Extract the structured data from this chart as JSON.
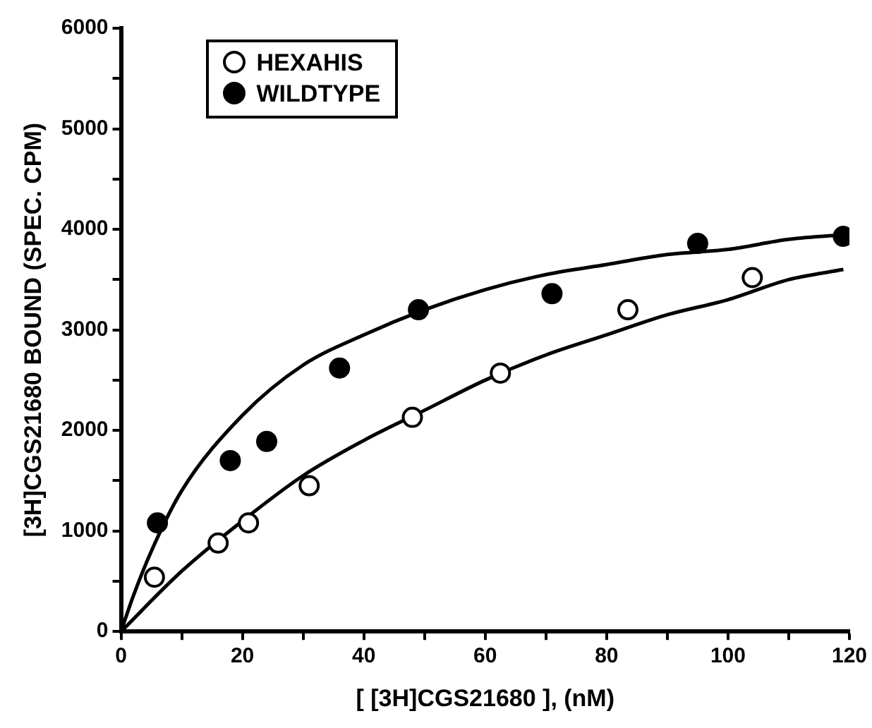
{
  "chart_data": {
    "type": "scatter",
    "xlabel": "[ [3H]CGS21680 ], (nM)",
    "ylabel": "[3H]CGS21680 BOUND (SPEC. CPM)",
    "xlim": [
      0,
      120
    ],
    "xticks": [
      0,
      {
        "value": 10,
        "label": null
      },
      20,
      {
        "value": 30,
        "label": null
      },
      40,
      {
        "value": 50,
        "label": null
      },
      60,
      {
        "value": 70,
        "label": null
      },
      80,
      {
        "value": 90,
        "label": null
      },
      100,
      {
        "value": 110,
        "label": null
      },
      120
    ],
    "ylim": [
      0,
      6000
    ],
    "yticks": [
      0,
      {
        "value": 500,
        "label": null
      },
      1000,
      {
        "value": 1500,
        "label": null
      },
      2000,
      {
        "value": 2500,
        "label": null
      },
      3000,
      {
        "value": 3500,
        "label": null
      },
      4000,
      {
        "value": 4500,
        "label": null
      },
      5000,
      {
        "value": 5500,
        "label": null
      },
      6000
    ],
    "grid": false,
    "legend": "top left",
    "marker": "circle",
    "series": [
      {
        "name": "HEXAHIS",
        "color": "#ffffff",
        "x": [
          5.5,
          16,
          21,
          31,
          48,
          62.5,
          83.5,
          104
        ],
        "values": [
          540,
          880,
          1080,
          1450,
          2130,
          2570,
          3200,
          3520
        ]
      },
      {
        "name": "WILDTYPE",
        "color": "#000000",
        "x": [
          6,
          18,
          24,
          36,
          49,
          71,
          95,
          119
        ],
        "values": [
          1080,
          1700,
          1890,
          2620,
          3200,
          3360,
          3860,
          3930
        ]
      },
      {
        "type": "line",
        "marker": "none",
        "color": "#000000",
        "x": [
          0,
          2,
          5,
          10,
          20,
          30,
          40,
          50,
          60,
          70,
          80,
          90,
          100,
          110,
          120
        ],
        "values": [
          0,
          350,
          800,
          1400,
          2150,
          2650,
          2950,
          3200,
          3400,
          3550,
          3650,
          3750,
          3800,
          3900,
          3950
        ]
      },
      {
        "type": "line",
        "marker": "none",
        "color": "#000000",
        "x": [
          0,
          10,
          20,
          30,
          40,
          50,
          60,
          70,
          80,
          90,
          100,
          110,
          119
        ],
        "values": [
          0,
          600,
          1100,
          1550,
          1900,
          2200,
          2500,
          2750,
          2950,
          3150,
          3300,
          3500,
          3600
        ]
      }
    ]
  }
}
